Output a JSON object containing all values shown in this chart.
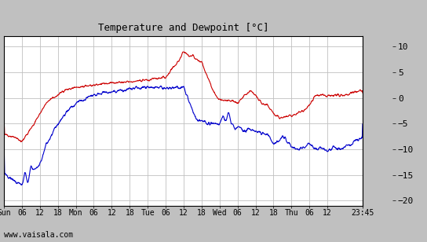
{
  "title": "Temperature and Dewpoint [°C]",
  "yticks": [
    10,
    5,
    0,
    -5,
    -10,
    -15,
    -20
  ],
  "ylim": [
    -21,
    12
  ],
  "xtick_labels": [
    "Sun",
    "06",
    "12",
    "18",
    "Mon",
    "06",
    "12",
    "18",
    "Tue",
    "06",
    "12",
    "18",
    "Wed",
    "06",
    "12",
    "18",
    "Thu",
    "06",
    "12",
    "23:45"
  ],
  "xtick_positions": [
    0,
    6,
    12,
    18,
    24,
    30,
    36,
    42,
    48,
    54,
    60,
    66,
    72,
    78,
    84,
    90,
    96,
    102,
    108,
    119.75
  ],
  "xlim": [
    0,
    119.75
  ],
  "watermark": "www.vaisala.com",
  "bg_color": "#c0c0c0",
  "plot_bg_color": "#ffffff",
  "grid_color": "#c0c0c0",
  "temp_color": "#cc0000",
  "dewp_color": "#0000cc",
  "line_width": 0.8,
  "n_points": 1500
}
